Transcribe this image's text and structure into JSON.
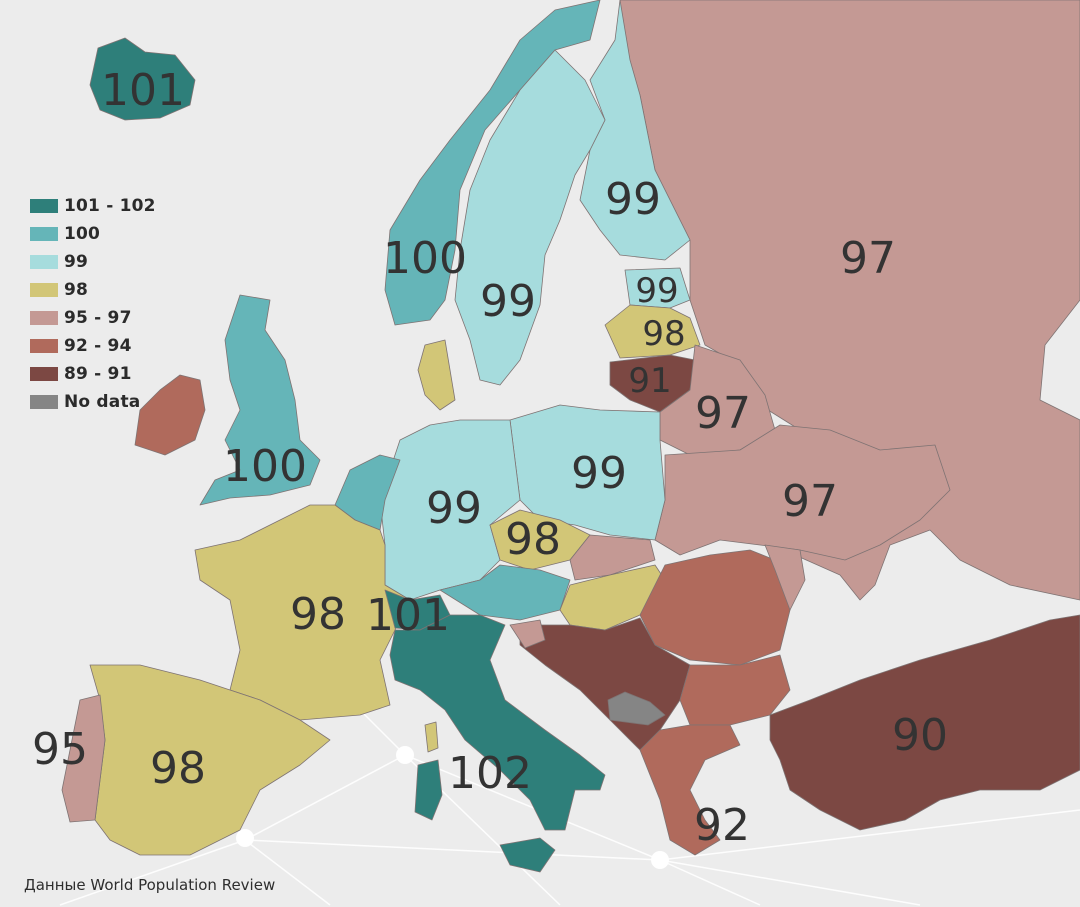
{
  "source": "Данные World Population Review",
  "legend": [
    {
      "label": "101 - 102",
      "color": "#2e7f7a"
    },
    {
      "label": "100",
      "color": "#65b5b8"
    },
    {
      "label": "99",
      "color": "#a6dcdd"
    },
    {
      "label": "98",
      "color": "#d2c677"
    },
    {
      "label": "95 - 97",
      "color": "#c49994"
    },
    {
      "label": "92 - 94",
      "color": "#b06a5c"
    },
    {
      "label": "89 - 91",
      "color": "#7c4843"
    },
    {
      "label": "No data",
      "color": "#858585"
    }
  ],
  "regions": [
    {
      "id": "iceland",
      "value": "101"
    },
    {
      "id": "norway",
      "value": "100"
    },
    {
      "id": "sweden",
      "value": "99"
    },
    {
      "id": "finland",
      "value": "99"
    },
    {
      "id": "russia",
      "value": "97"
    },
    {
      "id": "estonia",
      "value": "99"
    },
    {
      "id": "latvia",
      "value": "98"
    },
    {
      "id": "lithuania",
      "value": "91"
    },
    {
      "id": "belarus",
      "value": "97"
    },
    {
      "id": "uk",
      "value": "100"
    },
    {
      "id": "poland",
      "value": "99"
    },
    {
      "id": "germany",
      "value": "99"
    },
    {
      "id": "czechia",
      "value": "98"
    },
    {
      "id": "ukraine",
      "value": "97"
    },
    {
      "id": "france",
      "value": "98"
    },
    {
      "id": "switzerland",
      "value": "101"
    },
    {
      "id": "spain",
      "value": "98"
    },
    {
      "id": "portugal",
      "value": "95"
    },
    {
      "id": "italy",
      "value": "102"
    },
    {
      "id": "greece",
      "value": "92"
    },
    {
      "id": "turkey",
      "value": "90"
    }
  ]
}
